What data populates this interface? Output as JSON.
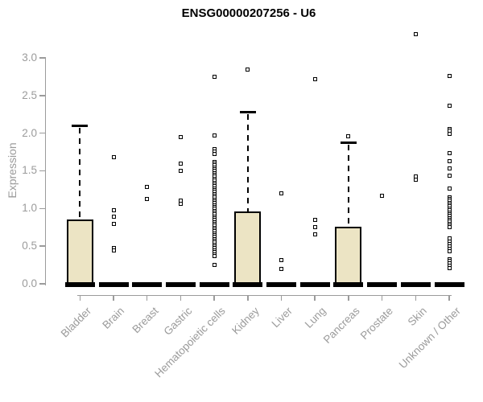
{
  "colors": {
    "background": "#ffffff",
    "box_fill": "#ece4c4",
    "box_stroke": "#000000",
    "axis_gray": "#9b9b9b",
    "title_color": "#000000"
  },
  "chart_data": {
    "type": "boxplot",
    "title": "ENSG00000207256 - U6",
    "ylabel": "Expression",
    "xlabel": "",
    "ylim": [
      0.0,
      3.4
    ],
    "yticks": [
      "0.0",
      "0.5",
      "1.0",
      "1.5",
      "2.0",
      "2.5",
      "3.0"
    ],
    "grid": "off",
    "legend": "none",
    "marker": "open-square",
    "categories": [
      "Bladder",
      "Brain",
      "Breast",
      "Gastric",
      "Hematopoietic cells",
      "Kidney",
      "Liver",
      "Lung",
      "Pancreas",
      "Prostate",
      "Skin",
      "Unknown / Other"
    ],
    "boxes": [
      {
        "label": "Bladder",
        "q1": 0,
        "median": 0,
        "q3": 0.85,
        "whisker_low": 0,
        "whisker_high": 2.1,
        "outliers": []
      },
      {
        "label": "Brain",
        "q1": 0,
        "median": 0,
        "q3": 0,
        "whisker_low": 0,
        "whisker_high": 0,
        "outliers": [
          1.68,
          0.98,
          0.89,
          0.8,
          0.48,
          0.44
        ]
      },
      {
        "label": "Breast",
        "q1": 0,
        "median": 0,
        "q3": 0,
        "whisker_low": 0,
        "whisker_high": 0,
        "outliers": [
          1.29,
          1.13
        ]
      },
      {
        "label": "Gastric",
        "q1": 0,
        "median": 0,
        "q3": 0,
        "whisker_low": 0,
        "whisker_high": 0,
        "outliers": [
          1.95,
          1.6,
          1.5,
          1.1,
          1.06
        ]
      },
      {
        "label": "Hematopoietic cells",
        "q1": 0,
        "median": 0,
        "q3": 0,
        "whisker_low": 0,
        "whisker_high": 0,
        "outliers": [
          2.75,
          1.97,
          1.79,
          1.76,
          1.72,
          1.62,
          1.595,
          1.57,
          1.545,
          1.52,
          1.495,
          1.47,
          1.445,
          1.42,
          1.395,
          1.37,
          1.345,
          1.32,
          1.295,
          1.27,
          1.245,
          1.22,
          1.195,
          1.17,
          1.145,
          1.12,
          1.095,
          1.07,
          1.045,
          1.02,
          0.995,
          0.97,
          0.945,
          0.92,
          0.895,
          0.87,
          0.845,
          0.82,
          0.795,
          0.77,
          0.745,
          0.72,
          0.695,
          0.67,
          0.645,
          0.62,
          0.595,
          0.57,
          0.545,
          0.52,
          0.495,
          0.47,
          0.445,
          0.42,
          0.395,
          0.37,
          0.25
        ]
      },
      {
        "label": "Kidney",
        "q1": 0,
        "median": 0,
        "q3": 0.96,
        "whisker_low": 0,
        "whisker_high": 2.28,
        "outliers": [
          2.85
        ]
      },
      {
        "label": "Liver",
        "q1": 0,
        "median": 0,
        "q3": 0,
        "whisker_low": 0,
        "whisker_high": 0,
        "outliers": [
          1.2,
          0.32,
          0.2
        ]
      },
      {
        "label": "Lung",
        "q1": 0,
        "median": 0,
        "q3": 0,
        "whisker_low": 0,
        "whisker_high": 0,
        "outliers": [
          2.72,
          0.85,
          0.75,
          0.66
        ]
      },
      {
        "label": "Pancreas",
        "q1": 0,
        "median": 0,
        "q3": 0.76,
        "whisker_low": 0,
        "whisker_high": 1.88,
        "outliers": [
          1.96
        ]
      },
      {
        "label": "Prostate",
        "q1": 0,
        "median": 0,
        "q3": 0,
        "whisker_low": 0,
        "whisker_high": 0,
        "outliers": [
          1.17
        ]
      },
      {
        "label": "Skin",
        "q1": 0,
        "median": 0,
        "q3": 0,
        "whisker_low": 0,
        "whisker_high": 0,
        "outliers": [
          3.31,
          1.43,
          1.38
        ]
      },
      {
        "label": "Unknown / Other",
        "q1": 0,
        "median": 0,
        "q3": 0,
        "whisker_low": 0,
        "whisker_high": 0,
        "outliers": [
          2.76,
          2.36,
          2.06,
          2.03,
          1.99,
          1.74,
          1.63,
          1.53,
          1.44,
          1.27,
          1.15,
          1.125,
          1.1,
          1.075,
          1.05,
          1.025,
          1.0,
          0.975,
          0.95,
          0.925,
          0.9,
          0.875,
          0.85,
          0.825,
          0.8,
          0.775,
          0.75,
          0.6,
          0.565,
          0.53,
          0.495,
          0.46,
          0.43,
          0.33,
          0.3,
          0.27,
          0.24,
          0.21
        ]
      }
    ]
  }
}
